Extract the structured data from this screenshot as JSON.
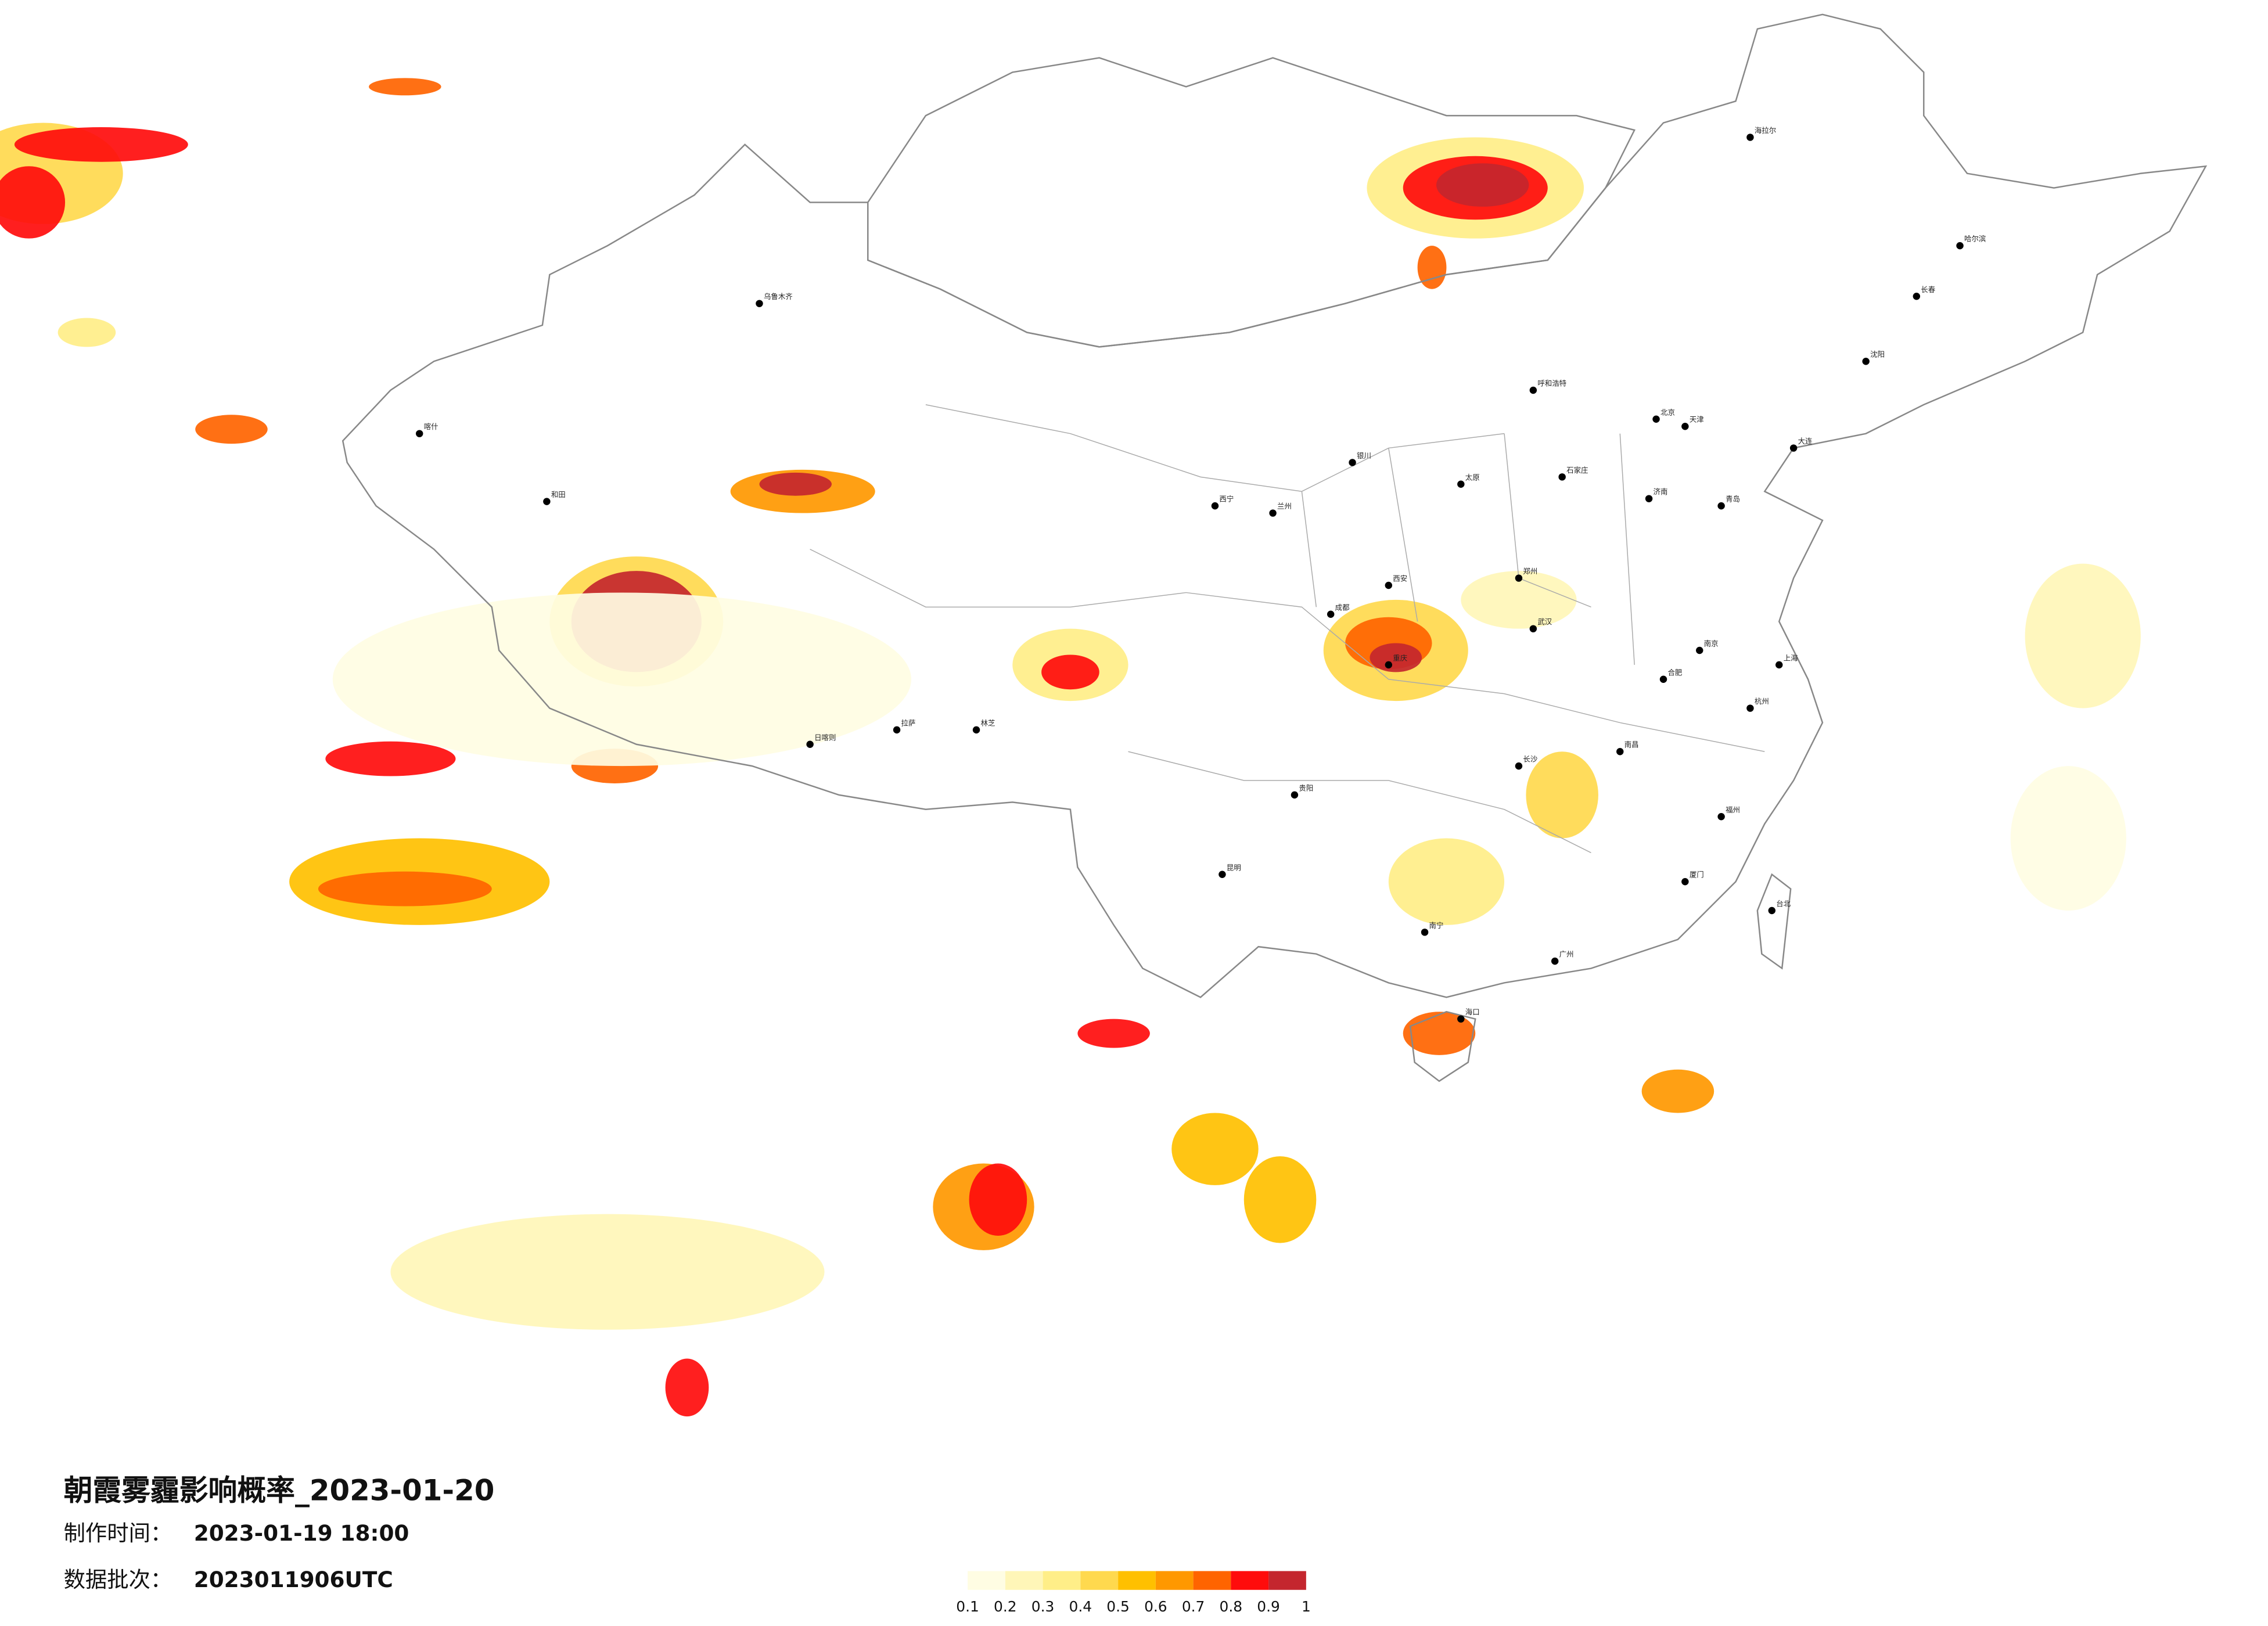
{
  "title": "朝霞雾霾影响概率_2023-01-20",
  "made_time": {
    "label": "制作时间：",
    "value": "2023-01-19 18:00"
  },
  "batch": {
    "label": "数据批次：",
    "value": "2023011906UTC"
  },
  "legend": {
    "ticks": [
      0.1,
      0.2,
      0.3,
      0.4,
      0.5,
      0.6,
      0.7,
      0.8,
      0.9,
      1
    ],
    "colors": [
      "#fffde3",
      "#fff6b8",
      "#ffee88",
      "#ffd94e",
      "#ffc000",
      "#ff9800",
      "#ff6400",
      "#ff0c0c",
      "#c4262e"
    ]
  },
  "cities": [
    "北京",
    "上海",
    "广州",
    "成都",
    "重庆",
    "武汉",
    "西安",
    "拉萨",
    "乌鲁木齐",
    "哈尔滨",
    "长春",
    "沈阳",
    "呼和浩特",
    "兰州",
    "西宁",
    "昆明",
    "贵阳",
    "南宁",
    "海口",
    "福州",
    "杭州",
    "南京",
    "济南",
    "郑州",
    "长沙",
    "南昌",
    "合肥",
    "太原",
    "石家庄",
    "天津",
    "银川",
    "台北",
    "喀什",
    "和田",
    "海拉尔",
    "日喀则",
    "林芝",
    "大连",
    "青岛",
    "厦门"
  ]
}
